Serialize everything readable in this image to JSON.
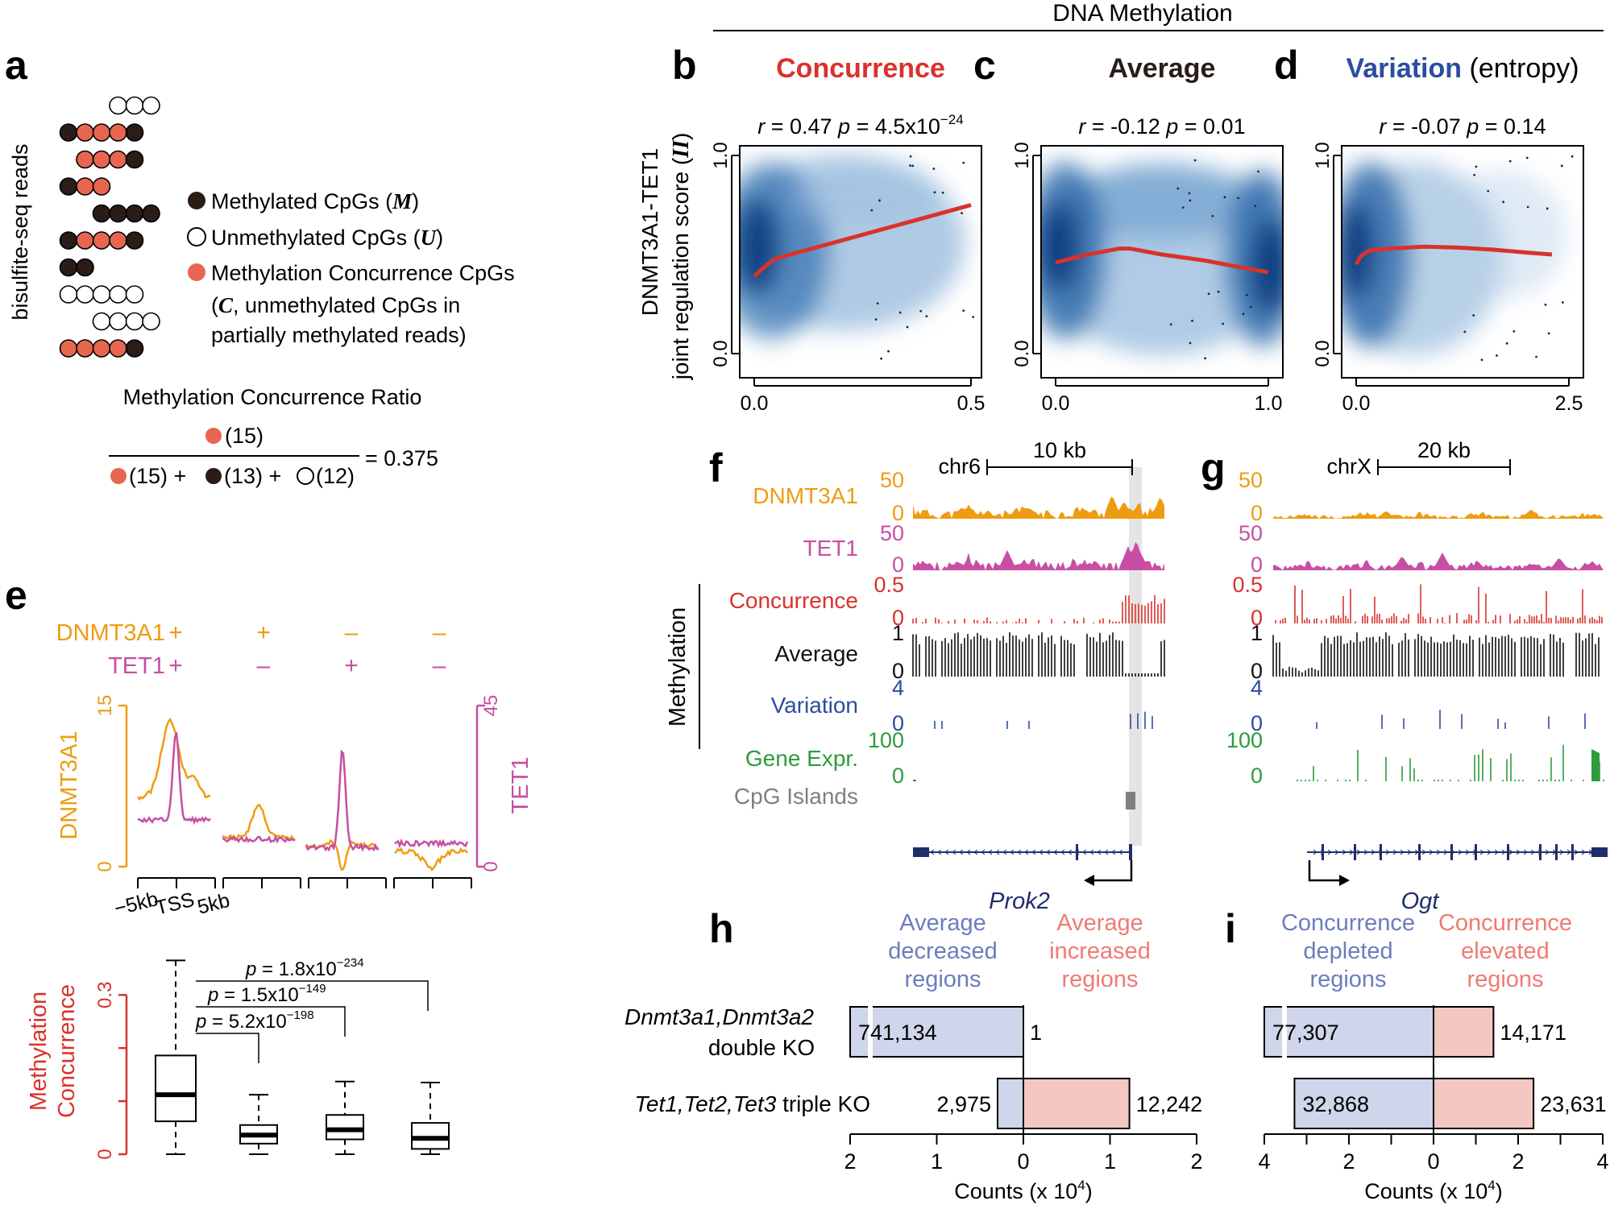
{
  "colors": {
    "red": "#d9322c",
    "blue": "#2b4da0",
    "orange": "#ee9c12",
    "magenta": "#c74ea4",
    "green": "#2e9b3c",
    "gray": "#7f7f7f",
    "salmon": "#e8664f",
    "dark": "#2a1c17",
    "navy": "#1f2d6b",
    "light_blue_bar": "#cfd5ea",
    "light_red_bar": "#f5c7c3"
  },
  "header": {
    "title": "DNA Methylation"
  },
  "panel_a": {
    "label": "a",
    "ylabel": "bisulfite-seq reads",
    "reads": [
      "...UUU",
      "MCCCM",
      ".CCCM",
      "MCC",
      "..MMMM",
      "MCCCM",
      "MM",
      "UUUUU",
      "..UUUU",
      "CCCCM"
    ],
    "legend": [
      {
        "dot": "M",
        "text": "Methylated CpGs (",
        "sym": "M",
        "close": ")"
      },
      {
        "dot": "U",
        "text": "Unmethylated CpGs (",
        "sym": "U",
        "close": ")"
      },
      {
        "dot": "C",
        "text": "Methylation Concurrence CpGs",
        "sym": "",
        "close": ""
      }
    ],
    "legend_line2_prefix": "(",
    "legend_line2_sym": "C",
    "legend_line2_rest": ", unmethylated CpGs in",
    "legend_line3": "partially methylated reads)",
    "ratio_title": "Methylation Concurrence Ratio",
    "numerator": "(15)",
    "denom": [
      "(15) +",
      "(13) +",
      "(12)"
    ],
    "result": "= 0.375"
  },
  "scatter_panels": [
    {
      "label": "b",
      "title": "Concurrence",
      "title_color": "red",
      "title_suffix": "",
      "stat_r": "0.47",
      "stat_p": "4.5x10",
      "stat_exp": "−24",
      "xticks": [
        "0.0",
        "0.5"
      ],
      "yticks": [
        "0.0",
        "1.0"
      ],
      "xmax": 0.5,
      "curve": [
        [
          0.0,
          0.39
        ],
        [
          0.03,
          0.45
        ],
        [
          0.05,
          0.48
        ],
        [
          0.1,
          0.51
        ],
        [
          0.2,
          0.57
        ],
        [
          0.3,
          0.63
        ],
        [
          0.4,
          0.69
        ],
        [
          0.5,
          0.75
        ]
      ]
    },
    {
      "label": "c",
      "title": "Average",
      "title_color": "dark",
      "title_suffix": "",
      "stat_r": "-0.12",
      "stat_p": "0.01",
      "stat_exp": "",
      "xticks": [
        "0.0",
        "1.0"
      ],
      "yticks": [
        "0.0",
        "1.0"
      ],
      "xmax": 1.0,
      "curve": [
        [
          0.0,
          0.46
        ],
        [
          0.15,
          0.5
        ],
        [
          0.3,
          0.53
        ],
        [
          0.35,
          0.53
        ],
        [
          0.5,
          0.5
        ],
        [
          0.7,
          0.47
        ],
        [
          0.85,
          0.44
        ],
        [
          1.0,
          0.41
        ]
      ]
    },
    {
      "label": "d",
      "title": "Variation",
      "title_color": "blue",
      "title_suffix": " (entropy)",
      "stat_r": "-0.07",
      "stat_p": "0.14",
      "stat_exp": "",
      "xticks": [
        "0.0",
        "2.5"
      ],
      "yticks": [
        "0.0",
        "1.0"
      ],
      "xmax": 2.5,
      "curve": [
        [
          0.0,
          0.45
        ],
        [
          0.05,
          0.49
        ],
        [
          0.15,
          0.52
        ],
        [
          0.4,
          0.53
        ],
        [
          0.8,
          0.54
        ],
        [
          1.2,
          0.535
        ],
        [
          1.6,
          0.525
        ],
        [
          2.0,
          0.51
        ],
        [
          2.3,
          0.5
        ]
      ]
    }
  ],
  "scatter_ylabel": [
    "DNMT3A1-TET1",
    "joint regulation score ("
  ],
  "scatter_ylabel_sym": "II",
  "panel_e": {
    "label": "e",
    "rows": [
      {
        "name": "DNMT3A1",
        "signs": [
          "+",
          "+",
          "–",
          "–"
        ],
        "color": "orange"
      },
      {
        "name": "TET1",
        "signs": [
          "+",
          "–",
          "+",
          "–"
        ],
        "color": "magenta"
      }
    ],
    "left_axis": "DNMT3A1",
    "right_axis": "TET1",
    "left_ticks": [
      "0",
      "15"
    ],
    "right_ticks": [
      "0",
      "45"
    ],
    "x_ticks": [
      "−5kb",
      "TSS",
      "5kb"
    ],
    "box_ylabel": [
      "Methylation",
      "Concurrence"
    ],
    "box_ticks": [
      "0",
      "0.3"
    ],
    "boxes": [
      {
        "min": 0.0,
        "q1": 0.062,
        "med": 0.112,
        "q3": 0.186,
        "max": 0.365
      },
      {
        "min": 0.0,
        "q1": 0.02,
        "med": 0.036,
        "q3": 0.055,
        "max": 0.112
      },
      {
        "min": 0.0,
        "q1": 0.028,
        "med": 0.046,
        "q3": 0.074,
        "max": 0.137
      },
      {
        "min": 0.0,
        "q1": 0.01,
        "med": 0.03,
        "q3": 0.059,
        "max": 0.135
      }
    ],
    "pvals": [
      {
        "p": "1.8x10",
        "exp": "−234"
      },
      {
        "p": "1.5x10",
        "exp": "−149"
      },
      {
        "p": "5.2x10",
        "exp": "−198"
      }
    ]
  },
  "tracks": {
    "names": [
      "DNMT3A1",
      "TET1",
      "Concurrence",
      "Average",
      "Variation",
      "Gene Expr.",
      "CpG Islands"
    ],
    "methylation_label": "Methylation",
    "f": {
      "label": "f",
      "chrom": "chr6",
      "scale": "10 kb",
      "gene": "Prok2",
      "ranges": {
        "DNMT3A1": [
          "50",
          "0"
        ],
        "TET1": [
          "50",
          "0"
        ],
        "Concurrence": [
          "0.5",
          "0"
        ],
        "Average": [
          "1",
          "0"
        ],
        "Variation": [
          "4",
          "0"
        ],
        "Gene Expr.": [
          "100",
          "0"
        ]
      }
    },
    "g": {
      "label": "g",
      "chrom": "chrX",
      "scale": "20 kb",
      "gene": "Ogt",
      "ranges": {
        "DNMT3A1": [
          "50",
          "0"
        ],
        "TET1": [
          "50",
          "0"
        ],
        "Concurrence": [
          "0.5",
          "0"
        ],
        "Average": [
          "1",
          "0"
        ],
        "Variation": [
          "4",
          "0"
        ],
        "Gene Expr.": [
          "100",
          "0"
        ]
      }
    }
  },
  "panel_h": {
    "label": "h",
    "left_head": [
      "Average",
      "decreased",
      "regions"
    ],
    "right_head": [
      "Average",
      "increased",
      "regions"
    ],
    "rows": [
      {
        "name_italic": "Dnmt3a1,Dnmt3a2",
        "name_rest": "",
        "name_line2": "double KO",
        "left": 741134,
        "left_label": "741,134",
        "right": 1,
        "right_label": "1"
      },
      {
        "name_italic": "Tet1,Tet2,Tet3",
        "name_rest": " triple KO",
        "name_line2": "",
        "left": 2975,
        "left_label": "2,975",
        "right": 12242,
        "right_label": "12,242"
      }
    ],
    "xticks": [
      "2",
      "1",
      "0",
      "1",
      "2"
    ],
    "xlabel": "Counts (x 10",
    "xlabel_exp": "4",
    "xlabel_close": ")"
  },
  "panel_i": {
    "label": "i",
    "left_head": [
      "Concurrence",
      "depleted",
      "regions"
    ],
    "right_head": [
      "Concurrence",
      "elevated",
      "regions"
    ],
    "rows": [
      {
        "left": 77307,
        "left_label": "77,307",
        "right": 14171,
        "right_label": "14,171"
      },
      {
        "left": 32868,
        "left_label": "32,868",
        "right": 23631,
        "right_label": "23,631"
      }
    ],
    "xticks": [
      "4",
      "2",
      "0",
      "2",
      "4"
    ],
    "xlabel": "Counts (x 10",
    "xlabel_exp": "4",
    "xlabel_close": ")"
  }
}
